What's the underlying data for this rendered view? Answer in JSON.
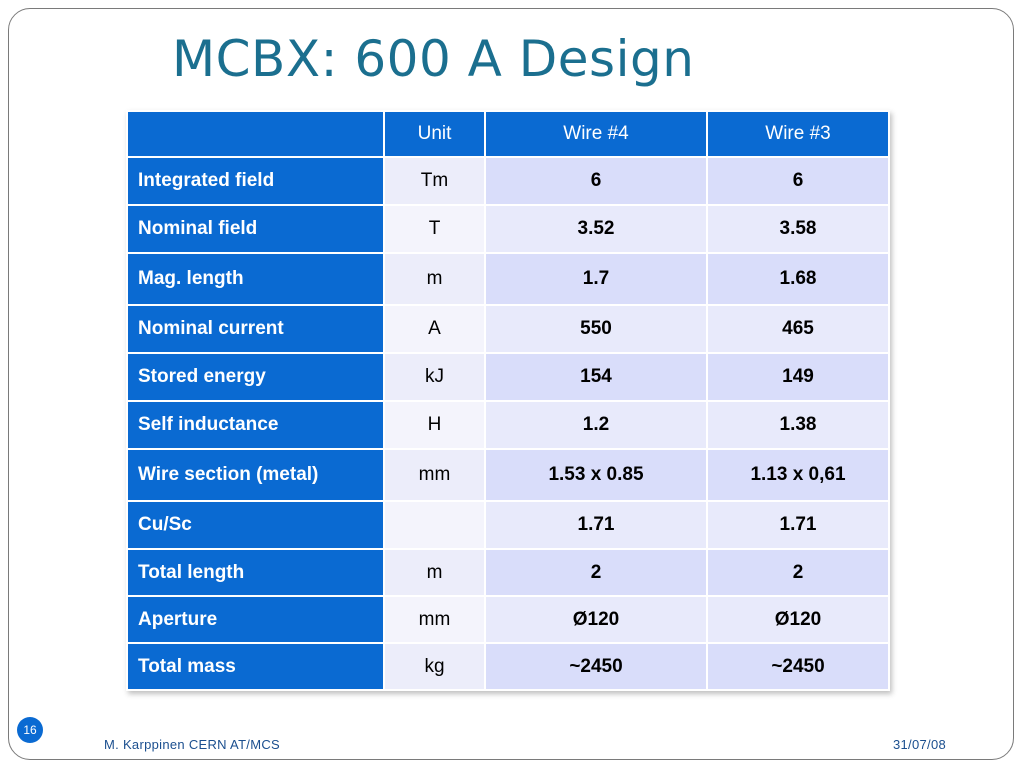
{
  "title": "MCBX: 600 A Design",
  "table": {
    "headers": [
      "",
      "Unit",
      "Wire #4",
      "Wire #3"
    ],
    "rows": [
      {
        "label": "Integrated field",
        "unit": "Tm",
        "w4": "6",
        "w3": "6"
      },
      {
        "label": "Nominal field",
        "unit": "T",
        "w4": "3.52",
        "w3": "3.58"
      },
      {
        "label": "Mag. length",
        "unit": "m",
        "w4": "1.7",
        "w3": "1.68"
      },
      {
        "label": "Nominal current",
        "unit": "A",
        "w4": "550",
        "w3": "465"
      },
      {
        "label": "Stored energy",
        "unit": "kJ",
        "w4": "154",
        "w3": "149"
      },
      {
        "label": "Self inductance",
        "unit": "H",
        "w4": "1.2",
        "w3": "1.38"
      },
      {
        "label": "Wire section (metal)",
        "unit": "mm",
        "w4": "1.53 x 0.85",
        "w3": "1.13 x 0,61"
      },
      {
        "label": "Cu/Sc",
        "unit": "",
        "w4": "1.71",
        "w3": "1.71"
      },
      {
        "label": "Total length",
        "unit": "m",
        "w4": "2",
        "w3": "2"
      },
      {
        "label": "Aperture",
        "unit": "mm",
        "w4": "Ø120",
        "w3": "Ø120"
      },
      {
        "label": "Total mass",
        "unit": "kg",
        "w4": "~2450",
        "w3": "~2450"
      }
    ]
  },
  "footer": {
    "slide_number": "16",
    "author": "M. Karppinen CERN AT/MCS",
    "date": "31/07/08"
  },
  "colors": {
    "title": "#1b6f8f",
    "header_blue": "#0a6ad2",
    "value_cell": "#d9ddfa"
  }
}
